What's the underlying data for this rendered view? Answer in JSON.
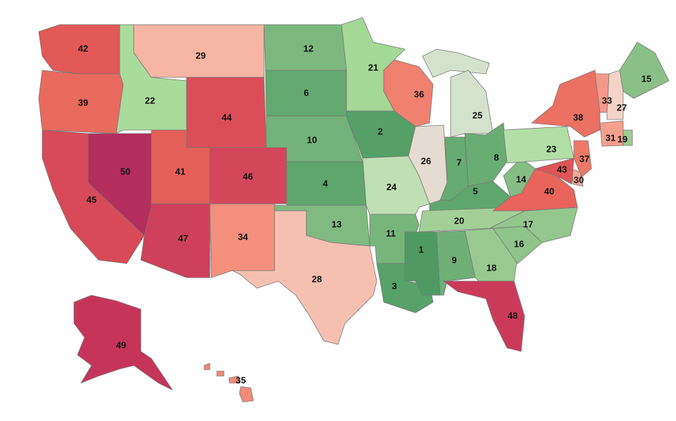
{
  "chart_data": {
    "type": "map",
    "values": [
      42,
      39,
      45,
      50,
      22,
      29,
      44,
      41,
      46,
      47,
      34,
      12,
      6,
      10,
      4,
      13,
      28,
      21,
      2,
      24,
      11,
      3,
      36,
      26,
      25,
      7,
      8,
      5,
      20,
      1,
      9,
      18,
      48,
      16,
      17,
      40,
      14,
      23,
      38,
      37,
      30,
      43,
      15,
      33,
      27,
      31,
      19,
      49,
      35
    ],
    "colors": [
      "#e25957",
      "#ea6a5f",
      "#d84a58",
      "#b52d5c",
      "#a9db9b",
      "#f7b5a3",
      "#db4e57",
      "#e55f59",
      "#d44659",
      "#cf405a",
      "#f48f7e",
      "#7cb87d",
      "#63a96f",
      "#73b278",
      "#5ea66b",
      "#80ba80",
      "#f6c0b0",
      "#a4d896",
      "#55a066",
      "#bfe0b3",
      "#77b57b",
      "#57a268",
      "#f0806f",
      "#e4dcd0",
      "#d4e2cd",
      "#66ab71",
      "#6aad73",
      "#5fa66c",
      "#a2d096",
      "#4e9a62",
      "#6faf76",
      "#98ca90",
      "#cc3a5a",
      "#8ec48a",
      "#93c78d",
      "#e8645c",
      "#85bd83",
      "#b2dfa6",
      "#ec7063",
      "#ee7868",
      "#f5a796",
      "#df5456",
      "#8ac087",
      "#f4988a",
      "#f3d3c7",
      "#f4a08e",
      "#9dcd93",
      "#c6345c",
      "#f28a78"
    ]
  }
}
